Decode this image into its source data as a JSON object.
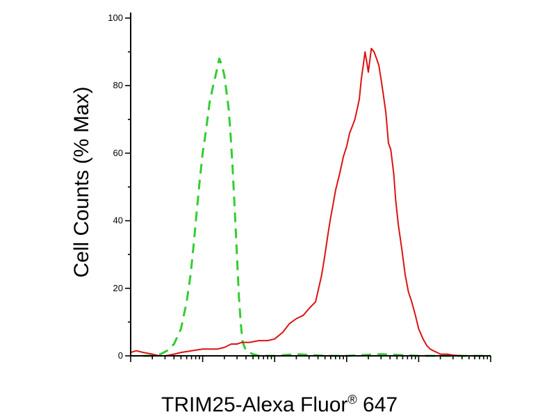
{
  "chart_data": {
    "type": "line",
    "title": "",
    "xlabel_main": "TRIM25-Alexa Fluor",
    "xlabel_sup": "®",
    "xlabel_tail": " 647",
    "ylabel": "Cell Counts (% Max)",
    "ylim": [
      0,
      100
    ],
    "xscale": "log",
    "xlim": [
      1,
      100000
    ],
    "grid": false,
    "y_ticks": [
      {
        "value": 0,
        "label": "0"
      },
      {
        "value": 20,
        "label": "20"
      },
      {
        "value": 40,
        "label": "40"
      },
      {
        "value": 60,
        "label": "60"
      },
      {
        "value": 80,
        "label": "80"
      },
      {
        "value": 100,
        "label": "100"
      }
    ],
    "series": [
      {
        "style": "dashed",
        "color": "#33cc33",
        "x": [
          1.5,
          2,
          2.6,
          3.2,
          4,
          5,
          6,
          6.8,
          7.5,
          8.3,
          9.1,
          10,
          11,
          12.5,
          14,
          15.5,
          17,
          18.5,
          20,
          21.5,
          23,
          24.5,
          26,
          27.5,
          29,
          30.5,
          32,
          34,
          36,
          40,
          50,
          60,
          80,
          100,
          200,
          500,
          1000,
          3000,
          10000,
          30000,
          100000
        ],
        "y": [
          0,
          0,
          0.5,
          1.5,
          3.5,
          8,
          16,
          24,
          33,
          43,
          52,
          60,
          66,
          75,
          80,
          84,
          88,
          86,
          83,
          78,
          73,
          65,
          56,
          46,
          36,
          26,
          17,
          9,
          4,
          1.5,
          0.5,
          0,
          0,
          0,
          0.5,
          0,
          0,
          0.5,
          0,
          0,
          0
        ]
      },
      {
        "style": "solid",
        "color": "#dd1111",
        "x": [
          1,
          1.2,
          1.5,
          2,
          2.5,
          3,
          4,
          5,
          7,
          10,
          14,
          16,
          20,
          25,
          30,
          35,
          45,
          60,
          80,
          100,
          130,
          160,
          200,
          250,
          300,
          370,
          450,
          500,
          550,
          600,
          650,
          700,
          800,
          900,
          1000,
          1100,
          1200,
          1300,
          1400,
          1500,
          1600,
          1700,
          1800,
          1900,
          2000,
          2200,
          2400,
          2600,
          2800,
          3000,
          3200,
          3500,
          3800,
          4100,
          4500,
          4800,
          5200,
          5800,
          6500,
          7200,
          8000,
          9000,
          10000,
          11500,
          13000,
          14500,
          16000,
          18000,
          20000,
          25000,
          30000,
          40000,
          60000,
          100000
        ],
        "y": [
          1,
          1.5,
          1,
          0.5,
          0,
          0,
          0.5,
          1,
          1.5,
          2,
          2,
          2,
          2.5,
          3.5,
          3.5,
          4,
          4,
          4.5,
          4.5,
          5,
          7,
          9.5,
          11,
          12,
          14,
          16,
          24,
          30,
          36,
          41,
          45,
          49,
          54,
          59,
          62,
          66,
          68,
          70,
          73,
          76,
          82,
          86,
          90,
          87,
          84,
          91,
          90,
          88,
          86,
          82,
          78,
          72,
          63,
          61,
          54,
          46,
          39,
          32,
          24,
          19,
          16,
          12,
          8,
          5,
          3,
          2,
          1.5,
          1,
          0.5,
          0.5,
          0.2,
          0,
          0,
          0
        ]
      }
    ]
  }
}
